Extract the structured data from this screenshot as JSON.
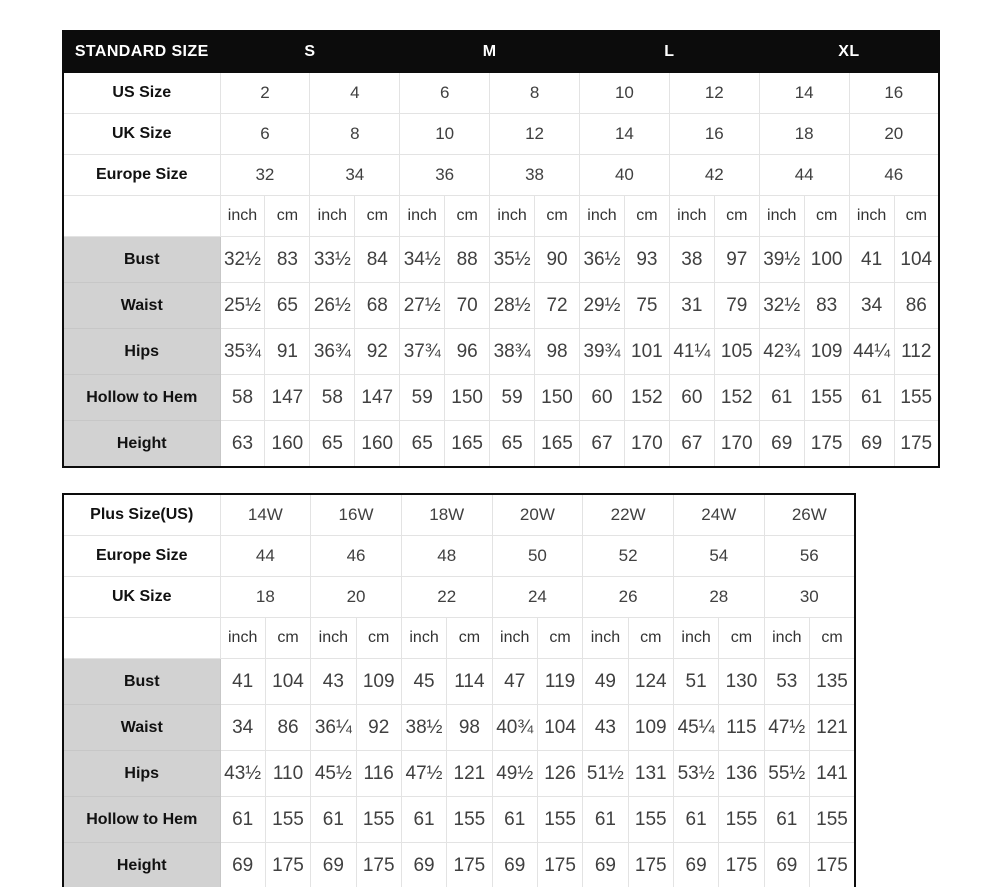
{
  "colors": {
    "header_bg": "#0c0c0c",
    "header_text": "#ffffff",
    "label_bg": "#d2d2d2",
    "border_outer": "#0c0c0c",
    "border_inner": "#e3e3e3",
    "text_label": "#111111",
    "text_data": "#404040",
    "page_bg": "#ffffff"
  },
  "standard_table": {
    "title": "STANDARD SIZE",
    "size_groups": [
      "S",
      "M",
      "L",
      "XL"
    ],
    "unit_row": {
      "inch": "inch",
      "cm": "cm"
    },
    "size_rows": [
      {
        "label": "US Size",
        "values": [
          "2",
          "4",
          "6",
          "8",
          "10",
          "12",
          "14",
          "16"
        ]
      },
      {
        "label": "UK Size",
        "values": [
          "6",
          "8",
          "10",
          "12",
          "14",
          "16",
          "18",
          "20"
        ]
      },
      {
        "label": "Europe Size",
        "values": [
          "32",
          "34",
          "36",
          "38",
          "40",
          "42",
          "44",
          "46"
        ]
      }
    ],
    "measure_rows": [
      {
        "label": "Bust",
        "values": [
          "32½",
          "83",
          "33½",
          "84",
          "34½",
          "88",
          "35½",
          "90",
          "36½",
          "93",
          "38",
          "97",
          "39½",
          "100",
          "41",
          "104"
        ]
      },
      {
        "label": "Waist",
        "values": [
          "25½",
          "65",
          "26½",
          "68",
          "27½",
          "70",
          "28½",
          "72",
          "29½",
          "75",
          "31",
          "79",
          "32½",
          "83",
          "34",
          "86"
        ]
      },
      {
        "label": "Hips",
        "values": [
          "35¾",
          "91",
          "36¾",
          "92",
          "37¾",
          "96",
          "38¾",
          "98",
          "39¾",
          "101",
          "41¼",
          "105",
          "42¾",
          "109",
          "44¼",
          "112"
        ]
      },
      {
        "label": "Hollow to Hem",
        "values": [
          "58",
          "147",
          "58",
          "147",
          "59",
          "150",
          "59",
          "150",
          "60",
          "152",
          "60",
          "152",
          "61",
          "155",
          "61",
          "155"
        ]
      },
      {
        "label": "Height",
        "values": [
          "63",
          "160",
          "65",
          "160",
          "65",
          "165",
          "65",
          "165",
          "67",
          "170",
          "67",
          "170",
          "69",
          "175",
          "69",
          "175"
        ]
      }
    ]
  },
  "plus_table": {
    "unit_row": {
      "inch": "inch",
      "cm": "cm"
    },
    "size_rows": [
      {
        "label": "Plus Size(US)",
        "values": [
          "14W",
          "16W",
          "18W",
          "20W",
          "22W",
          "24W",
          "26W"
        ]
      },
      {
        "label": "Europe Size",
        "values": [
          "44",
          "46",
          "48",
          "50",
          "52",
          "54",
          "56"
        ]
      },
      {
        "label": "UK Size",
        "values": [
          "18",
          "20",
          "22",
          "24",
          "26",
          "28",
          "30"
        ]
      }
    ],
    "measure_rows": [
      {
        "label": "Bust",
        "values": [
          "41",
          "104",
          "43",
          "109",
          "45",
          "114",
          "47",
          "119",
          "49",
          "124",
          "51",
          "130",
          "53",
          "135"
        ]
      },
      {
        "label": "Waist",
        "values": [
          "34",
          "86",
          "36¼",
          "92",
          "38½",
          "98",
          "40¾",
          "104",
          "43",
          "109",
          "45¼",
          "115",
          "47½",
          "121"
        ]
      },
      {
        "label": "Hips",
        "values": [
          "43½",
          "110",
          "45½",
          "116",
          "47½",
          "121",
          "49½",
          "126",
          "51½",
          "131",
          "53½",
          "136",
          "55½",
          "141"
        ]
      },
      {
        "label": "Hollow to Hem",
        "values": [
          "61",
          "155",
          "61",
          "155",
          "61",
          "155",
          "61",
          "155",
          "61",
          "155",
          "61",
          "155",
          "61",
          "155"
        ]
      },
      {
        "label": "Height",
        "values": [
          "69",
          "175",
          "69",
          "175",
          "69",
          "175",
          "69",
          "175",
          "69",
          "175",
          "69",
          "175",
          "69",
          "175"
        ]
      }
    ]
  }
}
